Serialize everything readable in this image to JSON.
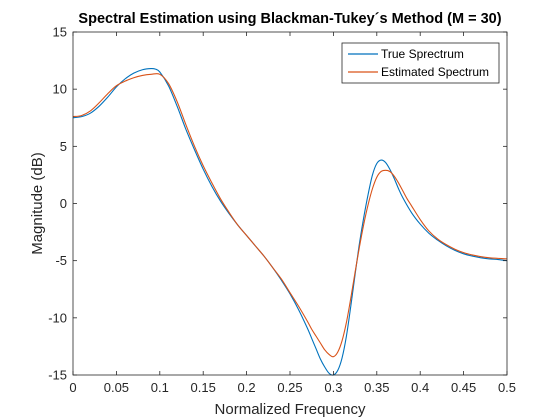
{
  "chart_data": {
    "type": "line",
    "title": "Spectral Estimation using Blackman-Tukey´s Method (M = 30)",
    "xlabel": "Normalized Frequency",
    "ylabel": "Magnitude (dB)",
    "xlim": [
      0,
      0.5
    ],
    "ylim": [
      -15,
      15
    ],
    "xticks": [
      0,
      0.05,
      0.1,
      0.15,
      0.2,
      0.25,
      0.3,
      0.35,
      0.4,
      0.45,
      0.5
    ],
    "xtick_labels": [
      "0",
      "0.05",
      "0.1",
      "0.15",
      "0.2",
      "0.25",
      "0.3",
      "0.35",
      "0.4",
      "0.45",
      "0.5"
    ],
    "yticks": [
      -15,
      -10,
      -5,
      0,
      5,
      10,
      15
    ],
    "ytick_labels": [
      "-15",
      "-10",
      "-5",
      "0",
      "5",
      "10",
      "15"
    ],
    "grid": false,
    "legend_position": "top-right",
    "series": [
      {
        "name": "True Sprectrum",
        "color": "#0072BD",
        "x": [
          0,
          0.01,
          0.02,
          0.03,
          0.04,
          0.05,
          0.06,
          0.07,
          0.08,
          0.09,
          0.095,
          0.1,
          0.11,
          0.12,
          0.13,
          0.14,
          0.15,
          0.16,
          0.17,
          0.18,
          0.19,
          0.2,
          0.21,
          0.22,
          0.23,
          0.24,
          0.25,
          0.26,
          0.27,
          0.275,
          0.28,
          0.285,
          0.29,
          0.295,
          0.3,
          0.305,
          0.31,
          0.315,
          0.32,
          0.325,
          0.33,
          0.335,
          0.34,
          0.345,
          0.35,
          0.355,
          0.36,
          0.365,
          0.37,
          0.375,
          0.38,
          0.39,
          0.4,
          0.41,
          0.42,
          0.43,
          0.44,
          0.45,
          0.46,
          0.47,
          0.48,
          0.49,
          0.5
        ],
        "y": [
          7.5,
          7.6,
          7.9,
          8.5,
          9.3,
          10.2,
          10.9,
          11.4,
          11.7,
          11.8,
          11.75,
          11.5,
          10.3,
          8.5,
          6.5,
          4.7,
          3.0,
          1.5,
          0.2,
          -0.9,
          -1.9,
          -2.8,
          -3.7,
          -4.6,
          -5.6,
          -6.7,
          -7.9,
          -9.3,
          -10.9,
          -11.8,
          -12.7,
          -13.6,
          -14.3,
          -14.85,
          -15.0,
          -14.6,
          -13.5,
          -11.6,
          -9.0,
          -6.2,
          -3.5,
          -1.2,
          0.8,
          2.5,
          3.5,
          3.8,
          3.6,
          3.0,
          2.2,
          1.3,
          0.5,
          -0.8,
          -1.8,
          -2.6,
          -3.2,
          -3.7,
          -4.1,
          -4.4,
          -4.6,
          -4.75,
          -4.85,
          -4.9,
          -5.0
        ]
      },
      {
        "name": "Estimated Spectrum",
        "color": "#D95319",
        "x": [
          0,
          0.01,
          0.02,
          0.03,
          0.04,
          0.05,
          0.06,
          0.07,
          0.08,
          0.09,
          0.1,
          0.11,
          0.12,
          0.13,
          0.14,
          0.15,
          0.16,
          0.17,
          0.18,
          0.19,
          0.2,
          0.21,
          0.22,
          0.23,
          0.24,
          0.25,
          0.26,
          0.27,
          0.275,
          0.28,
          0.285,
          0.29,
          0.295,
          0.3,
          0.305,
          0.31,
          0.315,
          0.32,
          0.325,
          0.33,
          0.335,
          0.34,
          0.345,
          0.35,
          0.355,
          0.36,
          0.365,
          0.37,
          0.375,
          0.38,
          0.385,
          0.39,
          0.4,
          0.41,
          0.42,
          0.43,
          0.44,
          0.45,
          0.46,
          0.47,
          0.48,
          0.49,
          0.5
        ],
        "y": [
          7.6,
          7.7,
          8.1,
          8.8,
          9.6,
          10.3,
          10.7,
          11.0,
          11.2,
          11.3,
          11.3,
          10.5,
          8.9,
          6.9,
          5.0,
          3.3,
          1.8,
          0.4,
          -0.8,
          -1.9,
          -2.8,
          -3.7,
          -4.6,
          -5.6,
          -6.6,
          -7.8,
          -9.0,
          -10.3,
          -11.0,
          -11.6,
          -12.2,
          -12.8,
          -13.2,
          -13.4,
          -13.0,
          -12.0,
          -10.4,
          -8.3,
          -6.0,
          -3.8,
          -1.8,
          -0.1,
          1.3,
          2.3,
          2.8,
          2.9,
          2.8,
          2.4,
          1.8,
          1.1,
          0.4,
          -0.2,
          -1.4,
          -2.4,
          -3.1,
          -3.6,
          -4.0,
          -4.3,
          -4.5,
          -4.65,
          -4.75,
          -4.8,
          -4.85
        ]
      }
    ]
  }
}
